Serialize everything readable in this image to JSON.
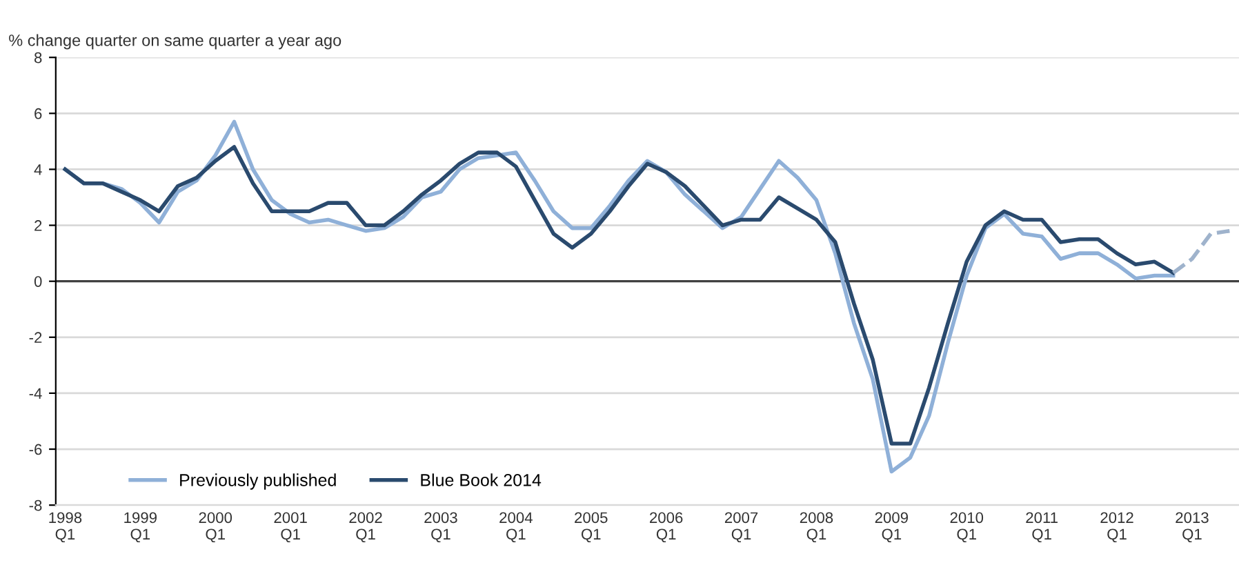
{
  "chart_data": {
    "type": "line",
    "title": "% change quarter on same quarter a year ago",
    "categories": [
      "1998\nQ1",
      null,
      null,
      null,
      "1999\nQ1",
      null,
      null,
      null,
      "2000\nQ1",
      null,
      null,
      null,
      "2001\nQ1",
      null,
      null,
      null,
      "2002\nQ1",
      null,
      null,
      null,
      "2003\nQ1",
      null,
      null,
      null,
      "2004\nQ1",
      null,
      null,
      null,
      "2005\nQ1",
      null,
      null,
      null,
      "2006\nQ1",
      null,
      null,
      null,
      "2007\nQ1",
      null,
      null,
      null,
      "2008\nQ1",
      null,
      null,
      null,
      "2009\nQ1",
      null,
      null,
      null,
      "2010\nQ1",
      null,
      null,
      null,
      "2011\nQ1",
      null,
      null,
      null,
      "2012\nQ1",
      null,
      null,
      null,
      "2013\nQ1",
      null,
      null
    ],
    "series": [
      {
        "name": "Previously published",
        "color": "#8fb0d8",
        "line_style": "solid",
        "values": [
          4.0,
          3.5,
          3.5,
          3.3,
          2.8,
          2.1,
          3.2,
          3.6,
          4.5,
          5.7,
          4.0,
          2.9,
          2.4,
          2.1,
          2.2,
          2.0,
          1.8,
          1.9,
          2.3,
          3.0,
          3.2,
          4.0,
          4.4,
          4.5,
          4.6,
          3.6,
          2.5,
          1.9,
          1.9,
          2.7,
          3.6,
          4.3,
          3.9,
          3.1,
          2.5,
          1.9,
          2.3,
          3.3,
          4.3,
          3.7,
          2.9,
          1.0,
          -1.5,
          -3.5,
          -6.8,
          -6.3,
          -4.8,
          -2.2,
          0.2,
          1.9,
          2.4,
          1.7,
          1.6,
          0.8,
          1.0,
          1.0,
          0.6,
          0.1,
          0.2,
          0.2,
          null,
          null,
          null
        ]
      },
      {
        "name": "Blue Book 2014",
        "color": "#2a4a6e",
        "line_style": "solid",
        "values": [
          4.0,
          3.5,
          3.5,
          3.2,
          2.9,
          2.5,
          3.4,
          3.7,
          4.3,
          4.8,
          3.5,
          2.5,
          2.5,
          2.5,
          2.8,
          2.8,
          2.0,
          2.0,
          2.5,
          3.1,
          3.6,
          4.2,
          4.6,
          4.6,
          4.1,
          2.9,
          1.7,
          1.2,
          1.7,
          2.5,
          3.4,
          4.2,
          3.9,
          3.4,
          2.7,
          2.0,
          2.2,
          2.2,
          3.0,
          2.6,
          2.2,
          1.4,
          -0.8,
          -2.8,
          -5.8,
          -5.8,
          -3.8,
          -1.5,
          0.7,
          2.0,
          2.5,
          2.2,
          2.2,
          1.4,
          1.5,
          1.5,
          1.0,
          0.6,
          0.7,
          0.3,
          null,
          null,
          null
        ]
      },
      {
        "color": "#9fb3cc",
        "line_style": "dashed",
        "values": [
          null,
          null,
          null,
          null,
          null,
          null,
          null,
          null,
          null,
          null,
          null,
          null,
          null,
          null,
          null,
          null,
          null,
          null,
          null,
          null,
          null,
          null,
          null,
          null,
          null,
          null,
          null,
          null,
          null,
          null,
          null,
          null,
          null,
          null,
          null,
          null,
          null,
          null,
          null,
          null,
          null,
          null,
          null,
          null,
          null,
          null,
          null,
          null,
          null,
          null,
          null,
          null,
          null,
          null,
          null,
          null,
          null,
          null,
          null,
          0.3,
          0.8,
          1.7,
          1.8
        ]
      }
    ],
    "ylim": [
      -8,
      8
    ],
    "yticks": [
      -8,
      -6,
      -4,
      -2,
      0,
      2,
      4,
      6,
      8
    ],
    "grid": "y",
    "legend": "bottom left",
    "ref_lines": [
      {
        "axis": "y",
        "value": 0,
        "color": "#404040"
      }
    ]
  }
}
